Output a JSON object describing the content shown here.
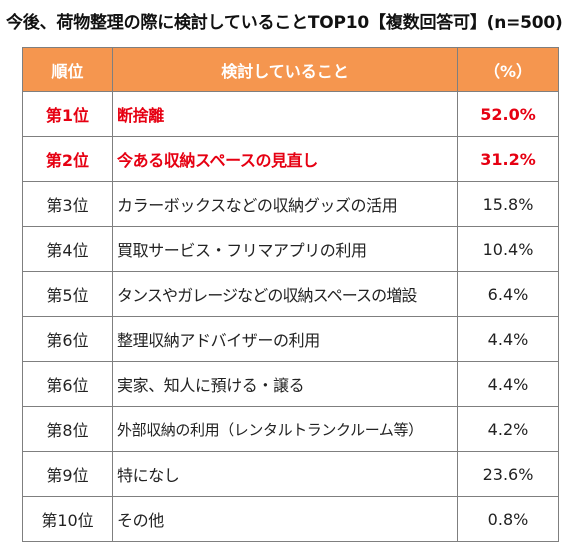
{
  "title": "今後、荷物整理の際に検討していることTOP10【複数回答可】(n=500)",
  "header": {
    "rank": "順位",
    "item": "検討していること",
    "pct": "（%）"
  },
  "rows": [
    {
      "rank": "第1位",
      "item": "断捨離",
      "pct": "52.0%",
      "highlight": true
    },
    {
      "rank": "第2位",
      "item": "今ある収納スペースの見直し",
      "pct": "31.2%",
      "highlight": true
    },
    {
      "rank": "第3位",
      "item": "カラーボックスなどの収納グッズの活用",
      "pct": "15.8%",
      "highlight": false
    },
    {
      "rank": "第4位",
      "item": "買取サービス・フリマアプリの利用",
      "pct": "10.4%",
      "highlight": false
    },
    {
      "rank": "第5位",
      "item": "タンスやガレージなどの収納スペースの増設",
      "pct": "6.4%",
      "highlight": false
    },
    {
      "rank": "第6位",
      "item": "整理収納アドバイザーの利用",
      "pct": "4.4%",
      "highlight": false
    },
    {
      "rank": "第6位",
      "item": "実家、知人に預ける・譲る",
      "pct": "4.4%",
      "highlight": false
    },
    {
      "rank": "第8位",
      "item": "外部収納の利用（レンタルトランクルーム等）",
      "pct": "4.2%",
      "highlight": false
    },
    {
      "rank": "第9位",
      "item": "特になし",
      "pct": "23.6%",
      "highlight": false
    },
    {
      "rank": "第10位",
      "item": "その他",
      "pct": "0.8%",
      "highlight": false
    }
  ],
  "colors": {
    "header_bg": "#f5964f",
    "highlight_text": "#e60012",
    "border": "#7f7f7f"
  }
}
